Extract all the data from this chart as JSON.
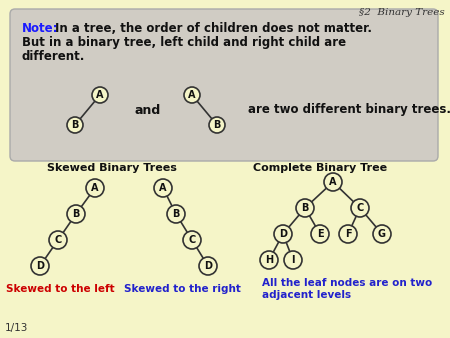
{
  "title": "§2  Binary Trees",
  "bg_color": "#f5f5c8",
  "note_box_color": "#d0ccc4",
  "note_label_color": "#1a1aff",
  "note_bold_text": "In a tree, the order of children does not matter.\nBut in a binary tree, left child and right child are\ndifferent.",
  "and_text": "and",
  "diff_text": "are two different binary trees.",
  "skewed_title": "Skewed Binary Trees",
  "complete_title": "Complete Binary Tree",
  "skewed_left_label": "Skewed to the left",
  "skewed_right_label": "Skewed to the right",
  "complete_label": "All the leaf nodes are on two\nadjacent levels",
  "skewed_left_color": "#cc0000",
  "skewed_right_color": "#2222cc",
  "complete_label_color": "#2222cc",
  "node_fill": "#f5f5c8",
  "node_edge": "#333333",
  "edge_color": "#333333",
  "page_num": "1/13"
}
